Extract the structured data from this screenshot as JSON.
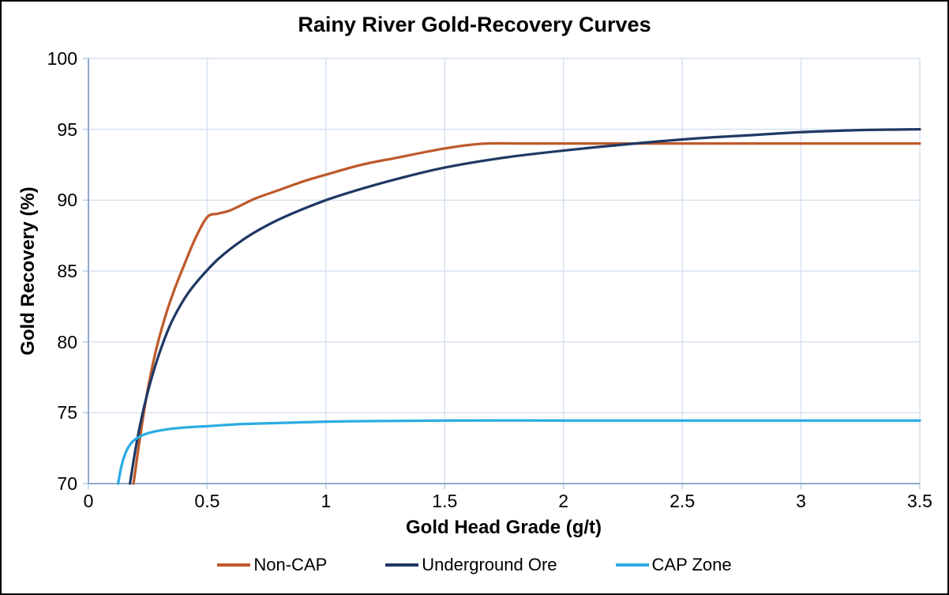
{
  "figure": {
    "background": "#FFFFFF",
    "border_color": "#000000",
    "text_color": "#000000"
  },
  "chart_data": {
    "type": "line",
    "title": "Rainy River Gold-Recovery Curves",
    "xlabel": "Gold Head Grade (g/t)",
    "ylabel": "Gold Recovery (%)",
    "xlim": [
      0,
      3.5
    ],
    "ylim": [
      70,
      100
    ],
    "x_ticks": [
      0,
      0.5,
      1,
      1.5,
      2,
      2.5,
      3,
      3.5
    ],
    "x_tick_labels": [
      "0",
      "0.5",
      "1",
      "1.5",
      "2",
      "2.5",
      "3",
      "3.5"
    ],
    "y_ticks": [
      70,
      75,
      80,
      85,
      90,
      95,
      100
    ],
    "y_tick_labels": [
      "70",
      "75",
      "80",
      "85",
      "90",
      "95",
      "100"
    ],
    "grid": true,
    "gridline_color": "#D6E2F0",
    "axis_line_color": "#8EAACB",
    "tick_mark_color": "#B9CCE2",
    "legend_position": "bottom",
    "series": [
      {
        "name": "Non-CAP",
        "color": "#BE5A2C",
        "points": [
          [
            0.19,
            70
          ],
          [
            0.215,
            73
          ],
          [
            0.245,
            76.2
          ],
          [
            0.28,
            79.1
          ],
          [
            0.32,
            81.6
          ],
          [
            0.36,
            83.6
          ],
          [
            0.4,
            85.3
          ],
          [
            0.45,
            87.3
          ],
          [
            0.5,
            88.8
          ],
          [
            0.545,
            89.05
          ],
          [
            0.6,
            89.3
          ],
          [
            0.7,
            90.1
          ],
          [
            0.8,
            90.7
          ],
          [
            0.9,
            91.3
          ],
          [
            1.0,
            91.8
          ],
          [
            1.15,
            92.5
          ],
          [
            1.3,
            93.0
          ],
          [
            1.45,
            93.5
          ],
          [
            1.58,
            93.85
          ],
          [
            1.68,
            94.0
          ],
          [
            1.85,
            94.0
          ],
          [
            2.1,
            94.0
          ],
          [
            2.4,
            94.0
          ],
          [
            2.8,
            94.0
          ],
          [
            3.15,
            94.0
          ],
          [
            3.5,
            94.0
          ]
        ]
      },
      {
        "name": "Underground Ore",
        "color": "#1F3864",
        "points": [
          [
            0.175,
            70
          ],
          [
            0.2,
            72.6
          ],
          [
            0.23,
            75.1
          ],
          [
            0.265,
            77.4
          ],
          [
            0.305,
            79.5
          ],
          [
            0.35,
            81.4
          ],
          [
            0.41,
            83.2
          ],
          [
            0.47,
            84.5
          ],
          [
            0.55,
            85.9
          ],
          [
            0.65,
            87.2
          ],
          [
            0.75,
            88.2
          ],
          [
            0.85,
            89.0
          ],
          [
            1.0,
            90.0
          ],
          [
            1.15,
            90.8
          ],
          [
            1.3,
            91.5
          ],
          [
            1.5,
            92.3
          ],
          [
            1.75,
            93.0
          ],
          [
            2.0,
            93.5
          ],
          [
            2.3,
            94.0
          ],
          [
            2.55,
            94.35
          ],
          [
            2.8,
            94.6
          ],
          [
            3.0,
            94.8
          ],
          [
            3.25,
            94.95
          ],
          [
            3.5,
            95.0
          ]
        ]
      },
      {
        "name": "CAP Zone",
        "color": "#2BACE2",
        "points": [
          [
            0.125,
            70
          ],
          [
            0.14,
            71.3
          ],
          [
            0.16,
            72.3
          ],
          [
            0.185,
            72.95
          ],
          [
            0.22,
            73.35
          ],
          [
            0.26,
            73.6
          ],
          [
            0.32,
            73.8
          ],
          [
            0.4,
            73.95
          ],
          [
            0.5,
            74.05
          ],
          [
            0.65,
            74.2
          ],
          [
            0.85,
            74.3
          ],
          [
            1.1,
            74.4
          ],
          [
            1.5,
            74.45
          ],
          [
            2.0,
            74.45
          ],
          [
            2.5,
            74.45
          ],
          [
            3.0,
            74.45
          ],
          [
            3.5,
            74.45
          ]
        ]
      }
    ]
  }
}
